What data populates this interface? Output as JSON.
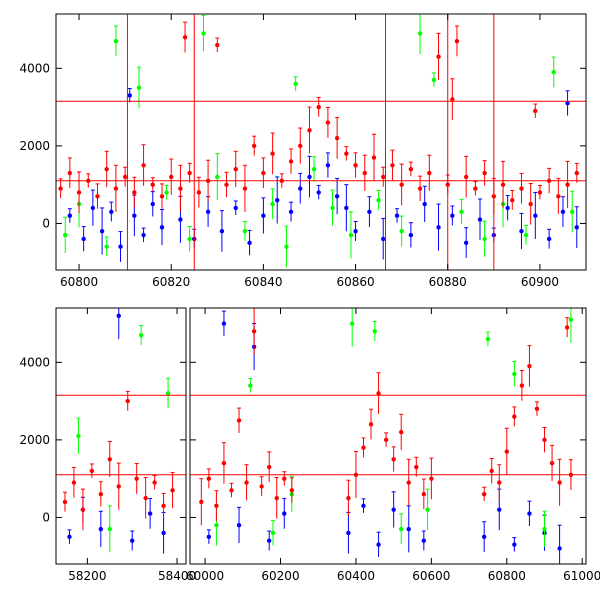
{
  "chart_data": [
    {
      "type": "scatter",
      "panel": "top",
      "title": "",
      "xlabel": "",
      "ylabel": "",
      "xlim": [
        60795,
        60910
      ],
      "ylim": [
        -1200,
        5400
      ],
      "x_ticks": [
        60800,
        60820,
        60840,
        60860,
        60880,
        60900
      ],
      "x_tick_labels": [
        "60800",
        "60820",
        "60840",
        "60860",
        "60880",
        "60900"
      ],
      "y_ticks": [
        0,
        2000,
        4000
      ],
      "y_tick_labels": [
        "0",
        "2000",
        "4000"
      ],
      "grid": false,
      "legend": "none",
      "series_colors": {
        "blue": "#0000ff",
        "green": "#00ff00",
        "red": "#ff0000"
      },
      "reference_lines_y": [
        1100,
        3150
      ],
      "reference_lines_x": [
        60810.5,
        60825,
        60866.5,
        60880,
        60890
      ],
      "segments": [
        [
          60795,
          60910
        ]
      ],
      "series": [
        {
          "color": "#0000ff",
          "points": [
            [
              60798,
              200
            ],
            [
              60801,
              -400
            ],
            [
              60803,
              400
            ],
            [
              60805,
              -200
            ],
            [
              60807,
              300
            ],
            [
              60809,
              -600
            ],
            [
              60812,
              200
            ],
            [
              60814,
              -300
            ],
            [
              60816,
              500
            ],
            [
              60818,
              -100
            ],
            [
              60822,
              100
            ],
            [
              60825,
              -400
            ],
            [
              60828,
              300
            ],
            [
              60831,
              -200
            ],
            [
              60834,
              400
            ],
            [
              60837,
              -500
            ],
            [
              60840,
              200
            ],
            [
              60843,
              600
            ],
            [
              60846,
              300
            ],
            [
              60848,
              900
            ],
            [
              60850,
              1200
            ],
            [
              60852,
              800
            ],
            [
              60854,
              1500
            ],
            [
              60856,
              700
            ],
            [
              60858,
              400
            ],
            [
              60860,
              -200
            ],
            [
              60863,
              300
            ],
            [
              60866,
              -400
            ],
            [
              60869,
              200
            ],
            [
              60872,
              -300
            ],
            [
              60875,
              500
            ],
            [
              60878,
              -100
            ],
            [
              60881,
              200
            ],
            [
              60884,
              -500
            ],
            [
              60887,
              100
            ],
            [
              60890,
              -300
            ],
            [
              60893,
              400
            ],
            [
              60896,
              -200
            ],
            [
              60899,
              200
            ],
            [
              60902,
              -400
            ],
            [
              60905,
              300
            ],
            [
              60908,
              -100
            ],
            [
              60811,
              3300
            ],
            [
              60906,
              3100
            ]
          ]
        },
        {
          "color": "#00ff00",
          "points": [
            [
              60797,
              -300
            ],
            [
              60800,
              500
            ],
            [
              60806,
              -600
            ],
            [
              60808,
              4700
            ],
            [
              60813,
              3500
            ],
            [
              60819,
              800
            ],
            [
              60824,
              -400
            ],
            [
              60827,
              4900
            ],
            [
              60830,
              1200
            ],
            [
              60836,
              -200
            ],
            [
              60842,
              500
            ],
            [
              60845,
              -600
            ],
            [
              60847,
              3600
            ],
            [
              60851,
              1400
            ],
            [
              60855,
              400
            ],
            [
              60859,
              -300
            ],
            [
              60865,
              600
            ],
            [
              60870,
              -200
            ],
            [
              60874,
              4900
            ],
            [
              60877,
              3700
            ],
            [
              60883,
              300
            ],
            [
              60888,
              -400
            ],
            [
              60892,
              500
            ],
            [
              60897,
              -300
            ],
            [
              60903,
              3900
            ],
            [
              60907,
              300
            ]
          ]
        },
        {
          "color": "#ff0000",
          "points": [
            [
              60796,
              900
            ],
            [
              60798,
              1300
            ],
            [
              60800,
              800
            ],
            [
              60802,
              1100
            ],
            [
              60804,
              700
            ],
            [
              60806,
              1400
            ],
            [
              60808,
              900
            ],
            [
              60810,
              1200
            ],
            [
              60812,
              800
            ],
            [
              60814,
              1500
            ],
            [
              60816,
              1000
            ],
            [
              60818,
              700
            ],
            [
              60820,
              1200
            ],
            [
              60822,
              900
            ],
            [
              60824,
              1300
            ],
            [
              60826,
              800
            ],
            [
              60828,
              1100
            ],
            [
              60830,
              4600
            ],
            [
              60832,
              1000
            ],
            [
              60834,
              1400
            ],
            [
              60836,
              900
            ],
            [
              60838,
              2000
            ],
            [
              60840,
              1300
            ],
            [
              60842,
              1800
            ],
            [
              60844,
              1100
            ],
            [
              60846,
              1600
            ],
            [
              60848,
              2000
            ],
            [
              60850,
              2400
            ],
            [
              60852,
              3000
            ],
            [
              60854,
              2600
            ],
            [
              60856,
              2200
            ],
            [
              60858,
              1800
            ],
            [
              60860,
              1500
            ],
            [
              60862,
              1300
            ],
            [
              60864,
              1700
            ],
            [
              60866,
              1200
            ],
            [
              60868,
              1500
            ],
            [
              60870,
              1000
            ],
            [
              60872,
              1400
            ],
            [
              60874,
              900
            ],
            [
              60876,
              1300
            ],
            [
              60878,
              4300
            ],
            [
              60880,
              1000
            ],
            [
              60882,
              4700
            ],
            [
              60884,
              1200
            ],
            [
              60886,
              900
            ],
            [
              60888,
              1300
            ],
            [
              60890,
              700
            ],
            [
              60892,
              1000
            ],
            [
              60894,
              600
            ],
            [
              60896,
              900
            ],
            [
              60898,
              500
            ],
            [
              60900,
              800
            ],
            [
              60902,
              1100
            ],
            [
              60904,
              700
            ],
            [
              60906,
              1000
            ],
            [
              60908,
              1300
            ],
            [
              60823,
              4800
            ],
            [
              60881,
              3200
            ],
            [
              60899,
              2900
            ]
          ]
        }
      ]
    },
    {
      "type": "scatter",
      "panel": "bottom",
      "title": "",
      "xlabel": "",
      "ylabel": "",
      "xlim": [
        58130,
        61010
      ],
      "ylim": [
        -1200,
        5400
      ],
      "x_ticks": [
        58200,
        58400,
        60000,
        60200,
        60400,
        60600,
        60800,
        61000
      ],
      "x_tick_labels": [
        "58200",
        "58400",
        "60000",
        "60200",
        "60400",
        "60600",
        "60800",
        "61000"
      ],
      "y_ticks": [
        0,
        2000,
        4000
      ],
      "y_tick_labels": [
        "0",
        "2000",
        "4000"
      ],
      "grid": false,
      "legend": "none",
      "series_colors": {
        "blue": "#0000ff",
        "green": "#00ff00",
        "red": "#ff0000"
      },
      "reference_lines_y": [
        1100,
        3150
      ],
      "segments": [
        [
          58130,
          58420
        ],
        [
          59960,
          61010
        ]
      ],
      "series": [
        {
          "color": "#0000ff",
          "points": [
            [
              58160,
              -500
            ],
            [
              58190,
              200
            ],
            [
              58230,
              -300
            ],
            [
              58270,
              5200
            ],
            [
              58300,
              -600
            ],
            [
              58340,
              100
            ],
            [
              58370,
              -400
            ],
            [
              60010,
              -500
            ],
            [
              60050,
              5000
            ],
            [
              60090,
              -200
            ],
            [
              60130,
              4400
            ],
            [
              60170,
              -600
            ],
            [
              60210,
              100
            ],
            [
              60380,
              -400
            ],
            [
              60420,
              300
            ],
            [
              60460,
              -700
            ],
            [
              60500,
              200
            ],
            [
              60540,
              -300
            ],
            [
              60580,
              -600
            ],
            [
              60740,
              -500
            ],
            [
              60780,
              200
            ],
            [
              60820,
              -700
            ],
            [
              60860,
              100
            ],
            [
              60900,
              -400
            ],
            [
              60940,
              -800
            ]
          ]
        },
        {
          "color": "#00ff00",
          "points": [
            [
              58180,
              2100
            ],
            [
              58250,
              -300
            ],
            [
              58320,
              4700
            ],
            [
              58380,
              3200
            ],
            [
              60030,
              -200
            ],
            [
              60120,
              3400
            ],
            [
              60180,
              -400
            ],
            [
              60230,
              600
            ],
            [
              60390,
              5000
            ],
            [
              60450,
              4800
            ],
            [
              60520,
              -300
            ],
            [
              60590,
              200
            ],
            [
              60750,
              4600
            ],
            [
              60820,
              3700
            ],
            [
              60900,
              -300
            ],
            [
              60970,
              5100
            ]
          ]
        },
        {
          "color": "#ff0000",
          "points": [
            [
              58150,
              400
            ],
            [
              58170,
              900
            ],
            [
              58190,
              200
            ],
            [
              58210,
              1200
            ],
            [
              58230,
              600
            ],
            [
              58250,
              1500
            ],
            [
              58270,
              800
            ],
            [
              58290,
              3000
            ],
            [
              58310,
              1000
            ],
            [
              58330,
              500
            ],
            [
              58350,
              900
            ],
            [
              58370,
              300
            ],
            [
              58390,
              700
            ],
            [
              59990,
              400
            ],
            [
              60010,
              1000
            ],
            [
              60030,
              300
            ],
            [
              60050,
              1400
            ],
            [
              60070,
              700
            ],
            [
              60090,
              2500
            ],
            [
              60110,
              900
            ],
            [
              60130,
              4800
            ],
            [
              60150,
              800
            ],
            [
              60170,
              1300
            ],
            [
              60190,
              500
            ],
            [
              60210,
              1000
            ],
            [
              60230,
              700
            ],
            [
              60380,
              500
            ],
            [
              60400,
              1100
            ],
            [
              60420,
              1800
            ],
            [
              60440,
              2400
            ],
            [
              60460,
              3200
            ],
            [
              60480,
              2000
            ],
            [
              60500,
              1500
            ],
            [
              60520,
              2200
            ],
            [
              60540,
              900
            ],
            [
              60560,
              1300
            ],
            [
              60580,
              600
            ],
            [
              60600,
              1000
            ],
            [
              60740,
              600
            ],
            [
              60760,
              1200
            ],
            [
              60780,
              900
            ],
            [
              60800,
              1700
            ],
            [
              60820,
              2600
            ],
            [
              60840,
              3400
            ],
            [
              60860,
              3900
            ],
            [
              60880,
              2800
            ],
            [
              60900,
              2000
            ],
            [
              60920,
              1400
            ],
            [
              60940,
              900
            ],
            [
              60960,
              4900
            ],
            [
              60970,
              1100
            ]
          ]
        }
      ]
    }
  ]
}
